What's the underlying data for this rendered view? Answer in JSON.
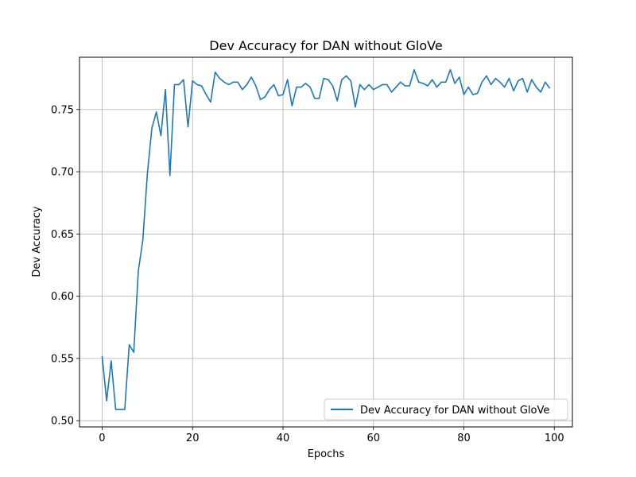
{
  "chart_data": {
    "type": "line",
    "title": "Dev Accuracy for DAN without GloVe",
    "xlabel": "Epochs",
    "ylabel": "Dev Accuracy",
    "xlim": [
      -5,
      104
    ],
    "ylim": [
      0.495,
      0.792
    ],
    "xticks": [
      0,
      20,
      40,
      60,
      80,
      100
    ],
    "xtick_labels": [
      "0",
      "20",
      "40",
      "60",
      "80",
      "100"
    ],
    "yticks": [
      0.5,
      0.55,
      0.6,
      0.65,
      0.7,
      0.75
    ],
    "ytick_labels": [
      "0.50",
      "0.55",
      "0.60",
      "0.65",
      "0.70",
      "0.75"
    ],
    "grid": true,
    "legend_position": "lower-right",
    "series": [
      {
        "name": "Dev Accuracy for DAN without GloVe",
        "color": "#1f77b4",
        "x": [
          0,
          1,
          2,
          3,
          4,
          5,
          6,
          7,
          8,
          9,
          10,
          11,
          12,
          13,
          14,
          15,
          16,
          17,
          18,
          19,
          20,
          21,
          22,
          23,
          24,
          25,
          26,
          27,
          28,
          29,
          30,
          31,
          32,
          33,
          34,
          35,
          36,
          37,
          38,
          39,
          40,
          41,
          42,
          43,
          44,
          45,
          46,
          47,
          48,
          49,
          50,
          51,
          52,
          53,
          54,
          55,
          56,
          57,
          58,
          59,
          60,
          61,
          62,
          63,
          64,
          65,
          66,
          67,
          68,
          69,
          70,
          71,
          72,
          73,
          74,
          75,
          76,
          77,
          78,
          79,
          80,
          81,
          82,
          83,
          84,
          85,
          86,
          87,
          88,
          89,
          90,
          91,
          92,
          93,
          94,
          95,
          96,
          97,
          98,
          99
        ],
        "values": [
          0.552,
          0.516,
          0.548,
          0.509,
          0.509,
          0.509,
          0.561,
          0.555,
          0.62,
          0.645,
          0.698,
          0.735,
          0.748,
          0.729,
          0.766,
          0.697,
          0.77,
          0.77,
          0.774,
          0.736,
          0.773,
          0.77,
          0.769,
          0.762,
          0.756,
          0.78,
          0.775,
          0.772,
          0.77,
          0.772,
          0.772,
          0.766,
          0.77,
          0.776,
          0.769,
          0.758,
          0.76,
          0.766,
          0.77,
          0.761,
          0.762,
          0.774,
          0.753,
          0.768,
          0.768,
          0.771,
          0.768,
          0.759,
          0.759,
          0.775,
          0.774,
          0.769,
          0.757,
          0.774,
          0.777,
          0.773,
          0.752,
          0.77,
          0.766,
          0.77,
          0.766,
          0.768,
          0.77,
          0.77,
          0.764,
          0.768,
          0.772,
          0.769,
          0.769,
          0.782,
          0.772,
          0.771,
          0.769,
          0.774,
          0.768,
          0.772,
          0.772,
          0.782,
          0.771,
          0.776,
          0.762,
          0.768,
          0.762,
          0.763,
          0.772,
          0.777,
          0.77,
          0.775,
          0.772,
          0.768,
          0.775,
          0.765,
          0.773,
          0.775,
          0.764,
          0.774,
          0.768,
          0.764,
          0.772,
          0.767
        ]
      }
    ]
  }
}
